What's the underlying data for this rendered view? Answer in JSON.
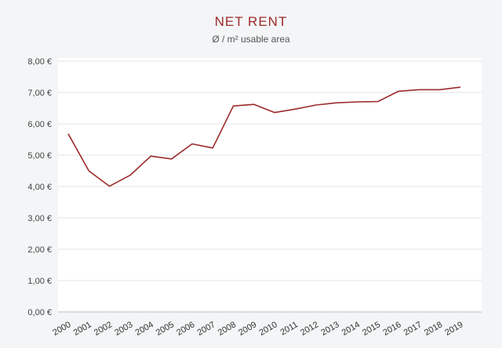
{
  "chart_data": {
    "type": "line",
    "title": "NET RENT",
    "subtitle": "Ø / m² usable area",
    "x": [
      "2000",
      "2001",
      "2002",
      "2003",
      "2004",
      "2005",
      "2006",
      "2007",
      "2008",
      "2009",
      "2010",
      "2011",
      "2012",
      "2013",
      "2014",
      "2015",
      "2016",
      "2017",
      "2018",
      "2019"
    ],
    "series": [
      {
        "values": [
          5.68,
          4.5,
          4.01,
          4.36,
          4.97,
          4.88,
          5.36,
          5.23,
          6.57,
          6.62,
          6.36,
          6.47,
          6.6,
          6.67,
          6.7,
          6.71,
          7.04,
          7.09,
          7.09,
          7.17
        ]
      }
    ],
    "ylim": [
      0,
      8
    ],
    "yticks": [
      "0,00 €",
      "1,00 €",
      "2,00 €",
      "3,00 €",
      "4,00 €",
      "5,00 €",
      "6,00 €",
      "7,00 €",
      "8,00 €"
    ],
    "grid": true,
    "legend": "none",
    "line_color": "#9c2a2a"
  }
}
